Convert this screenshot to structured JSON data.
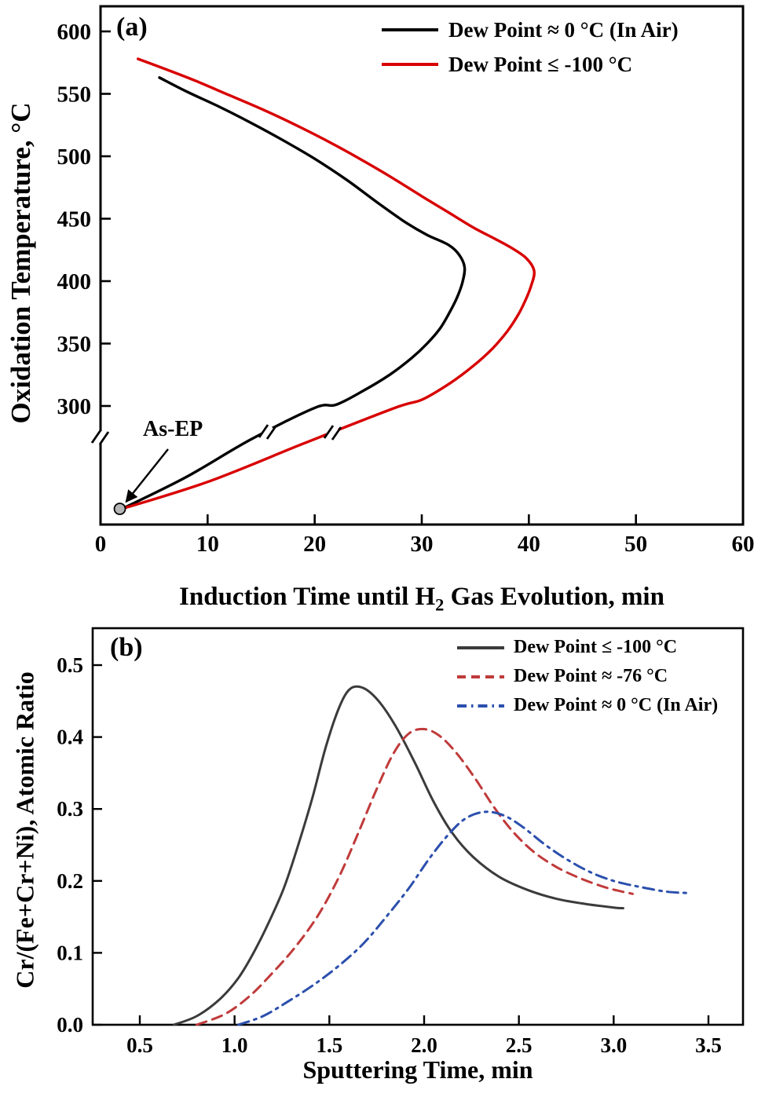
{
  "panel_a": {
    "letter": "(a)",
    "ylabel": "Oxidation Temperature, °C",
    "xlabel_pre": "Induction Time until H",
    "xlabel_sub": "2",
    "xlabel_post": " Gas Evolution, min",
    "annotation_label": "As-EP",
    "legend": [
      {
        "label": "Dew Point ≈ 0 °C (In Air)"
      },
      {
        "label": "Dew Point ≤ -100 °C"
      }
    ]
  },
  "panel_b": {
    "letter": "(b)",
    "ylabel": "Cr/(Fe+Cr+Ni), Atomic Ratio",
    "xlabel": "Sputtering Time, min",
    "legend": [
      {
        "label": "Dew Point ≤ -100 °C"
      },
      {
        "label": "Dew Point ≈ -76 °C"
      },
      {
        "label": "Dew Point ≈ 0 °C (In Air)"
      }
    ]
  },
  "chart_data": [
    {
      "type": "line",
      "panel": "(a)",
      "title": "",
      "xlabel": "Induction Time until H₂ Gas Evolution, min",
      "ylabel": "Oxidation Temperature, °C",
      "xlim": [
        0,
        60
      ],
      "x_tick_values": [
        0,
        10,
        20,
        30,
        40,
        50,
        60
      ],
      "x_tick_labels": [
        "0",
        "10",
        "20",
        "30",
        "40",
        "50",
        "60"
      ],
      "y_tick_values": [
        600,
        550,
        500,
        450,
        400,
        350,
        300
      ],
      "y_tick_labels": [
        "600",
        "550",
        "500",
        "450",
        "400",
        "350",
        "300"
      ],
      "y_axis_break": {
        "below_value": 300,
        "bottom_value": 25
      },
      "grid": false,
      "legend_position": "top-right",
      "series": [
        {
          "name": "Dew Point ≈ 0 °C (In Air)",
          "color": "#000000",
          "style": "solid",
          "points": [
            [
              5.5,
              563
            ],
            [
              8,
              552
            ],
            [
              11,
              540
            ],
            [
              14,
              527
            ],
            [
              17,
              513
            ],
            [
              20,
              498
            ],
            [
              23,
              481
            ],
            [
              26,
              462
            ],
            [
              28.5,
              447
            ],
            [
              30.5,
              437
            ],
            [
              32.5,
              429
            ],
            [
              33.5,
              421
            ],
            [
              34,
              411
            ],
            [
              33.8,
              399
            ],
            [
              33.3,
              387
            ],
            [
              32.6,
              375
            ],
            [
              31.7,
              362
            ],
            [
              30.5,
              350
            ],
            [
              29,
              338
            ],
            [
              27,
              325
            ],
            [
              24.5,
              312
            ],
            [
              22,
              301
            ],
            [
              20,
              295
            ],
            [
              14,
              210
            ],
            [
              8,
              110
            ],
            [
              2,
              25
            ]
          ]
        },
        {
          "name": "Dew Point ≤ -100 °C",
          "color": "#d80000",
          "style": "solid",
          "points": [
            [
              3.5,
              578
            ],
            [
              6,
              570
            ],
            [
              9,
              560
            ],
            [
              12,
              549
            ],
            [
              15,
              538
            ],
            [
              18,
              526
            ],
            [
              21,
              513
            ],
            [
              24,
              499
            ],
            [
              27,
              484
            ],
            [
              30,
              468
            ],
            [
              32.5,
              455
            ],
            [
              34.8,
              443
            ],
            [
              36.8,
              434
            ],
            [
              38.5,
              426
            ],
            [
              39.8,
              418
            ],
            [
              40.5,
              408
            ],
            [
              40.2,
              396
            ],
            [
              39.7,
              385
            ],
            [
              39,
              373
            ],
            [
              38,
              360
            ],
            [
              36.6,
              346
            ],
            [
              34.8,
              332
            ],
            [
              32.6,
              318
            ],
            [
              30,
              305
            ],
            [
              27.5,
              295
            ],
            [
              19,
              200
            ],
            [
              10,
              97
            ],
            [
              2,
              25
            ]
          ]
        }
      ],
      "annotation": {
        "label": "As-EP",
        "point": [
          1.8,
          25
        ]
      }
    },
    {
      "type": "line",
      "panel": "(b)",
      "title": "",
      "xlabel": "Sputtering Time, min",
      "ylabel": "Cr/(Fe+Cr+Ni), Atomic Ratio",
      "xlim": [
        0.25,
        3.68
      ],
      "ylim": [
        0.0,
        0.55
      ],
      "x_tick_values": [
        0.5,
        1.0,
        1.5,
        2.0,
        2.5,
        3.0,
        3.5
      ],
      "x_tick_labels": [
        "0.5",
        "1.0",
        "1.5",
        "2.0",
        "2.5",
        "3.0",
        "3.5"
      ],
      "y_tick_values": [
        0.0,
        0.1,
        0.2,
        0.3,
        0.4,
        0.5
      ],
      "y_tick_labels": [
        "0.0",
        "0.1",
        "0.2",
        "0.3",
        "0.4",
        "0.5"
      ],
      "grid": false,
      "legend_position": "top-right",
      "series": [
        {
          "name": "Dew Point ≤ -100 °C",
          "color": "#3b3b3b",
          "style": "solid",
          "points": [
            [
              0.68,
              0.0
            ],
            [
              0.8,
              0.012
            ],
            [
              0.92,
              0.035
            ],
            [
              1.02,
              0.065
            ],
            [
              1.1,
              0.1
            ],
            [
              1.18,
              0.142
            ],
            [
              1.26,
              0.19
            ],
            [
              1.33,
              0.245
            ],
            [
              1.41,
              0.315
            ],
            [
              1.48,
              0.385
            ],
            [
              1.55,
              0.44
            ],
            [
              1.61,
              0.467
            ],
            [
              1.68,
              0.468
            ],
            [
              1.76,
              0.45
            ],
            [
              1.85,
              0.415
            ],
            [
              1.95,
              0.365
            ],
            [
              2.05,
              0.31
            ],
            [
              2.15,
              0.266
            ],
            [
              2.26,
              0.233
            ],
            [
              2.4,
              0.205
            ],
            [
              2.55,
              0.187
            ],
            [
              2.7,
              0.175
            ],
            [
              2.85,
              0.168
            ],
            [
              3.0,
              0.163
            ],
            [
              3.05,
              0.162
            ]
          ]
        },
        {
          "name": "Dew Point ≈ -76 °C",
          "color": "#c03a3a",
          "style": "dashed",
          "points": [
            [
              0.8,
              0.0
            ],
            [
              0.95,
              0.015
            ],
            [
              1.08,
              0.04
            ],
            [
              1.2,
              0.072
            ],
            [
              1.32,
              0.108
            ],
            [
              1.44,
              0.152
            ],
            [
              1.55,
              0.205
            ],
            [
              1.65,
              0.265
            ],
            [
              1.75,
              0.328
            ],
            [
              1.84,
              0.378
            ],
            [
              1.92,
              0.405
            ],
            [
              2.0,
              0.411
            ],
            [
              2.08,
              0.402
            ],
            [
              2.17,
              0.378
            ],
            [
              2.27,
              0.342
            ],
            [
              2.37,
              0.302
            ],
            [
              2.47,
              0.268
            ],
            [
              2.58,
              0.24
            ],
            [
              2.7,
              0.219
            ],
            [
              2.83,
              0.203
            ],
            [
              2.97,
              0.19
            ],
            [
              3.1,
              0.182
            ]
          ]
        },
        {
          "name": "Dew Point ≈ 0 °C (In Air)",
          "color": "#2b4fad",
          "style": "dashdot",
          "points": [
            [
              1.02,
              0.0
            ],
            [
              1.15,
              0.012
            ],
            [
              1.28,
              0.032
            ],
            [
              1.42,
              0.056
            ],
            [
              1.55,
              0.082
            ],
            [
              1.68,
              0.113
            ],
            [
              1.8,
              0.15
            ],
            [
              1.92,
              0.19
            ],
            [
              2.03,
              0.232
            ],
            [
              2.13,
              0.265
            ],
            [
              2.22,
              0.287
            ],
            [
              2.32,
              0.296
            ],
            [
              2.42,
              0.291
            ],
            [
              2.52,
              0.275
            ],
            [
              2.63,
              0.252
            ],
            [
              2.74,
              0.232
            ],
            [
              2.87,
              0.213
            ],
            [
              3.0,
              0.2
            ],
            [
              3.15,
              0.191
            ],
            [
              3.28,
              0.185
            ],
            [
              3.4,
              0.183
            ]
          ]
        }
      ]
    }
  ]
}
